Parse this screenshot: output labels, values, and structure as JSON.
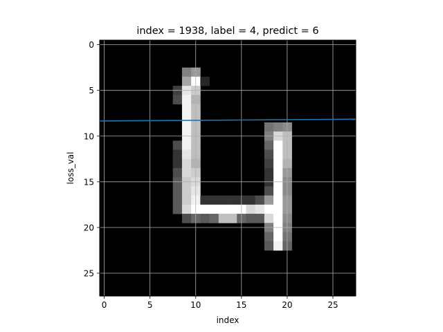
{
  "chart_data": {
    "type": "heatmap",
    "title": "index = 1938, label = 4, predict = 6",
    "xlabel": "index",
    "ylabel": "loss_val",
    "xlim": [
      -0.5,
      27.5
    ],
    "ylim": [
      27.5,
      -0.5
    ],
    "xticks": [
      0,
      5,
      10,
      15,
      20,
      25
    ],
    "yticks": [
      0,
      5,
      10,
      15,
      20,
      25
    ],
    "grid": true,
    "colormap": "gray",
    "image_size": [
      28,
      28
    ],
    "pixels": [
      {
        "r": 3,
        "c": 9,
        "v": 0.5
      },
      {
        "r": 3,
        "c": 10,
        "v": 0.6
      },
      {
        "r": 4,
        "c": 9,
        "v": 0.65
      },
      {
        "r": 4,
        "c": 10,
        "v": 1.0
      },
      {
        "r": 4,
        "c": 11,
        "v": 0.15
      },
      {
        "r": 5,
        "c": 8,
        "v": 0.25
      },
      {
        "r": 5,
        "c": 9,
        "v": 0.9
      },
      {
        "r": 5,
        "c": 10,
        "v": 0.8
      },
      {
        "r": 6,
        "c": 8,
        "v": 0.3
      },
      {
        "r": 6,
        "c": 9,
        "v": 0.95
      },
      {
        "r": 6,
        "c": 10,
        "v": 0.7
      },
      {
        "r": 7,
        "c": 9,
        "v": 0.95
      },
      {
        "r": 7,
        "c": 10,
        "v": 0.75
      },
      {
        "r": 8,
        "c": 9,
        "v": 0.95
      },
      {
        "r": 8,
        "c": 10,
        "v": 0.75
      },
      {
        "r": 9,
        "c": 9,
        "v": 0.95
      },
      {
        "r": 9,
        "c": 10,
        "v": 0.75
      },
      {
        "r": 9,
        "c": 18,
        "v": 0.45
      },
      {
        "r": 9,
        "c": 19,
        "v": 0.5
      },
      {
        "r": 9,
        "c": 20,
        "v": 0.55
      },
      {
        "r": 10,
        "c": 9,
        "v": 0.95
      },
      {
        "r": 10,
        "c": 10,
        "v": 0.75
      },
      {
        "r": 10,
        "c": 18,
        "v": 0.5
      },
      {
        "r": 10,
        "c": 19,
        "v": 0.85
      },
      {
        "r": 10,
        "c": 20,
        "v": 0.75
      },
      {
        "r": 11,
        "c": 8,
        "v": 0.3
      },
      {
        "r": 11,
        "c": 9,
        "v": 0.95
      },
      {
        "r": 11,
        "c": 10,
        "v": 0.75
      },
      {
        "r": 11,
        "c": 18,
        "v": 0.4
      },
      {
        "r": 11,
        "c": 19,
        "v": 1.0
      },
      {
        "r": 11,
        "c": 20,
        "v": 0.75
      },
      {
        "r": 12,
        "c": 8,
        "v": 0.2
      },
      {
        "r": 12,
        "c": 9,
        "v": 0.9
      },
      {
        "r": 12,
        "c": 10,
        "v": 0.75
      },
      {
        "r": 12,
        "c": 18,
        "v": 0.3
      },
      {
        "r": 12,
        "c": 19,
        "v": 1.0
      },
      {
        "r": 12,
        "c": 20,
        "v": 0.75
      },
      {
        "r": 13,
        "c": 8,
        "v": 0.2
      },
      {
        "r": 13,
        "c": 9,
        "v": 0.85
      },
      {
        "r": 13,
        "c": 10,
        "v": 0.7
      },
      {
        "r": 13,
        "c": 18,
        "v": 0.25
      },
      {
        "r": 13,
        "c": 19,
        "v": 1.0
      },
      {
        "r": 13,
        "c": 20,
        "v": 0.7
      },
      {
        "r": 14,
        "c": 8,
        "v": 0.3
      },
      {
        "r": 14,
        "c": 9,
        "v": 0.85
      },
      {
        "r": 14,
        "c": 10,
        "v": 0.8
      },
      {
        "r": 14,
        "c": 18,
        "v": 0.2
      },
      {
        "r": 14,
        "c": 19,
        "v": 1.0
      },
      {
        "r": 14,
        "c": 20,
        "v": 0.6
      },
      {
        "r": 15,
        "c": 8,
        "v": 0.35
      },
      {
        "r": 15,
        "c": 9,
        "v": 0.8
      },
      {
        "r": 15,
        "c": 10,
        "v": 0.85
      },
      {
        "r": 15,
        "c": 18,
        "v": 0.2
      },
      {
        "r": 15,
        "c": 19,
        "v": 1.0
      },
      {
        "r": 15,
        "c": 20,
        "v": 0.55
      },
      {
        "r": 16,
        "c": 8,
        "v": 0.35
      },
      {
        "r": 16,
        "c": 9,
        "v": 0.8
      },
      {
        "r": 16,
        "c": 10,
        "v": 0.9
      },
      {
        "r": 16,
        "c": 18,
        "v": 0.3
      },
      {
        "r": 16,
        "c": 19,
        "v": 1.0
      },
      {
        "r": 16,
        "c": 20,
        "v": 0.55
      },
      {
        "r": 17,
        "c": 8,
        "v": 0.35
      },
      {
        "r": 17,
        "c": 9,
        "v": 0.8
      },
      {
        "r": 17,
        "c": 10,
        "v": 0.95
      },
      {
        "r": 17,
        "c": 11,
        "v": 0.2
      },
      {
        "r": 17,
        "c": 12,
        "v": 0.2
      },
      {
        "r": 17,
        "c": 13,
        "v": 0.2
      },
      {
        "r": 17,
        "c": 14,
        "v": 0.2
      },
      {
        "r": 17,
        "c": 15,
        "v": 0.2
      },
      {
        "r": 17,
        "c": 16,
        "v": 0.2
      },
      {
        "r": 17,
        "c": 17,
        "v": 0.3
      },
      {
        "r": 17,
        "c": 18,
        "v": 0.6
      },
      {
        "r": 17,
        "c": 19,
        "v": 1.0
      },
      {
        "r": 17,
        "c": 20,
        "v": 0.6
      },
      {
        "r": 18,
        "c": 8,
        "v": 0.35
      },
      {
        "r": 18,
        "c": 9,
        "v": 0.85
      },
      {
        "r": 18,
        "c": 10,
        "v": 1.0
      },
      {
        "r": 18,
        "c": 11,
        "v": 1.0
      },
      {
        "r": 18,
        "c": 12,
        "v": 1.0
      },
      {
        "r": 18,
        "c": 13,
        "v": 1.0
      },
      {
        "r": 18,
        "c": 14,
        "v": 1.0
      },
      {
        "r": 18,
        "c": 15,
        "v": 1.0
      },
      {
        "r": 18,
        "c": 16,
        "v": 0.85
      },
      {
        "r": 18,
        "c": 17,
        "v": 0.9
      },
      {
        "r": 18,
        "c": 18,
        "v": 1.0
      },
      {
        "r": 18,
        "c": 19,
        "v": 1.0
      },
      {
        "r": 18,
        "c": 20,
        "v": 0.6
      },
      {
        "r": 19,
        "c": 9,
        "v": 0.3
      },
      {
        "r": 19,
        "c": 10,
        "v": 0.4
      },
      {
        "r": 19,
        "c": 11,
        "v": 0.35
      },
      {
        "r": 19,
        "c": 12,
        "v": 0.4
      },
      {
        "r": 19,
        "c": 13,
        "v": 0.75
      },
      {
        "r": 19,
        "c": 14,
        "v": 0.75
      },
      {
        "r": 19,
        "c": 15,
        "v": 0.4
      },
      {
        "r": 19,
        "c": 16,
        "v": 0.35
      },
      {
        "r": 19,
        "c": 17,
        "v": 0.35
      },
      {
        "r": 19,
        "c": 18,
        "v": 0.85
      },
      {
        "r": 19,
        "c": 19,
        "v": 1.0
      },
      {
        "r": 19,
        "c": 20,
        "v": 0.55
      },
      {
        "r": 20,
        "c": 18,
        "v": 0.5
      },
      {
        "r": 20,
        "c": 19,
        "v": 1.0
      },
      {
        "r": 20,
        "c": 20,
        "v": 0.5
      },
      {
        "r": 21,
        "c": 18,
        "v": 0.4
      },
      {
        "r": 21,
        "c": 19,
        "v": 1.0
      },
      {
        "r": 21,
        "c": 20,
        "v": 0.45
      },
      {
        "r": 22,
        "c": 18,
        "v": 0.35
      },
      {
        "r": 22,
        "c": 19,
        "v": 0.95
      },
      {
        "r": 22,
        "c": 20,
        "v": 0.4
      }
    ],
    "series": [
      {
        "type": "line",
        "color": "#1f77b4",
        "x": [
          -0.5,
          27.5
        ],
        "y": [
          8.35,
          8.15
        ]
      }
    ]
  }
}
